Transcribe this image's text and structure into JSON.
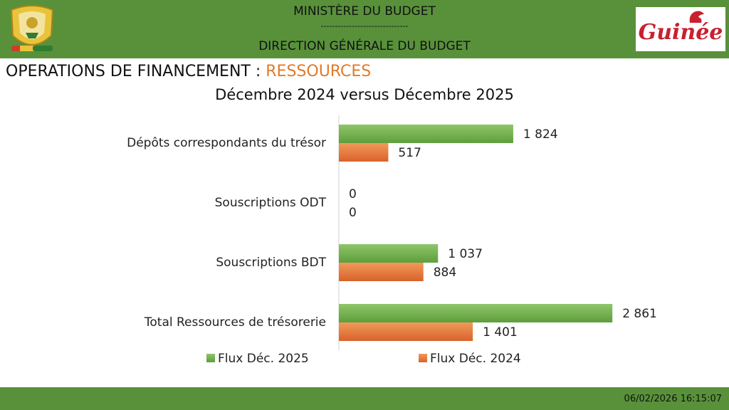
{
  "header": {
    "ministry": "MINISTÈRE DU BUDGET",
    "separator": "-------------------------------",
    "direction": "DIRECTION GÉNÉRALE DU BUDGET",
    "logo_text": "Guinée"
  },
  "title": {
    "main": "OPERATIONS DE FINANCEMENT : ",
    "highlight": "RESSOURCES"
  },
  "subtitle": "Décembre 2024 versus Décembre 2025",
  "chart_data": {
    "type": "bar",
    "orientation": "horizontal",
    "categories": [
      "Dépôts  correspondants du trésor",
      "Souscriptions ODT",
      "Souscriptions BDT",
      "Total Ressources de trésorerie"
    ],
    "series": [
      {
        "name": "Flux Déc. 2025",
        "values": [
          1824,
          0,
          1037,
          2861
        ],
        "labels": [
          "1 824",
          "0",
          "1 037",
          "2 861"
        ],
        "color": "#5e9e3c"
      },
      {
        "name": "Flux Déc. 2024",
        "values": [
          517,
          0,
          884,
          1401
        ],
        "labels": [
          "517",
          "0",
          "884",
          "1 401"
        ],
        "color": "#d9622b"
      }
    ],
    "xlim": [
      0,
      3500
    ],
    "grid": false,
    "legend_position": "bottom"
  },
  "footer": {
    "timestamp": "06/02/2026 16:15:07"
  }
}
